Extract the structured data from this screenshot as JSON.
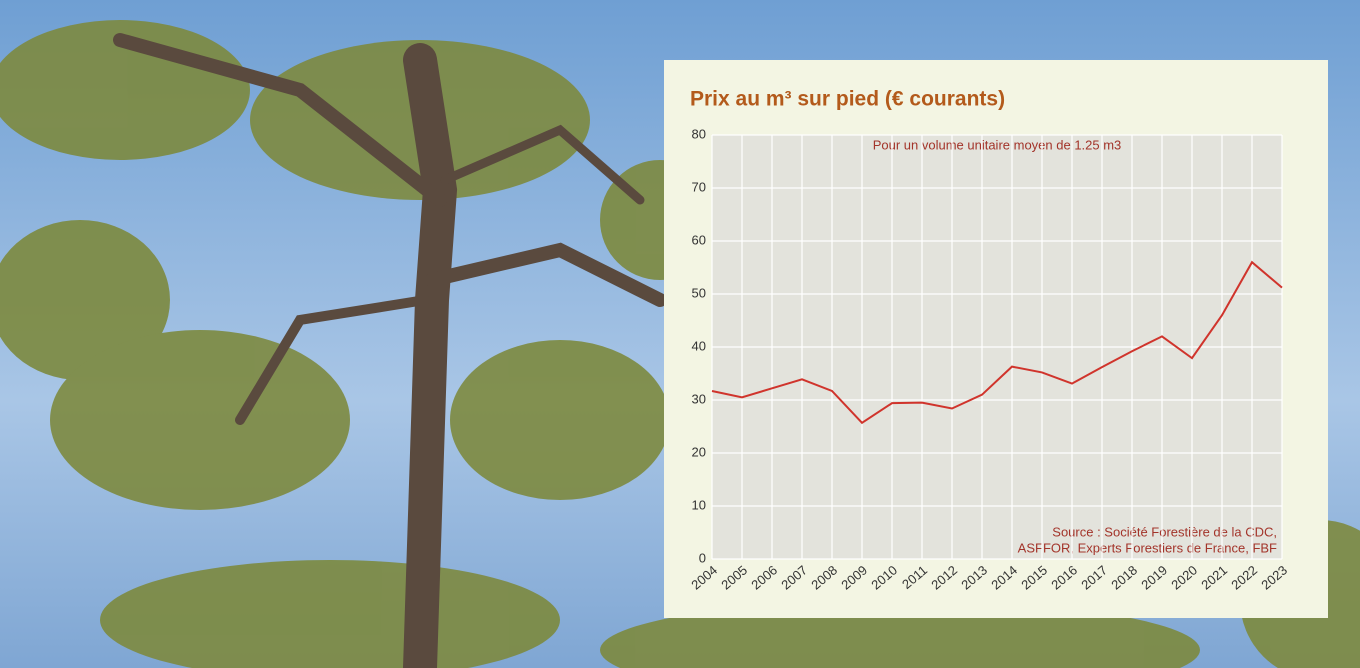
{
  "chart_data": {
    "type": "line",
    "title": "Prix au m³ sur pied (€ courants)",
    "subtitle": "Pour un volume unitaire moyen de 1.25 m3",
    "source": [
      "Source : Société Forestière de la CDC,",
      "ASFFOR, Experts Forestiers de France, FBF"
    ],
    "categories": [
      "2004",
      "2005",
      "2006",
      "2007",
      "2008",
      "2009",
      "2010",
      "2011",
      "2012",
      "2013",
      "2014",
      "2015",
      "2016",
      "2017",
      "2018",
      "2019",
      "2020",
      "2021",
      "2022",
      "2023"
    ],
    "values": [
      31.7,
      30.5,
      32.2,
      33.9,
      31.7,
      25.7,
      29.4,
      29.5,
      28.4,
      31,
      36.3,
      35.2,
      33.1,
      36.2,
      39.2,
      42,
      37.9,
      46,
      56,
      51.2
    ],
    "color": "#d0342c",
    "ylim": [
      0,
      80
    ],
    "yticks": [
      0,
      10,
      20,
      30,
      40,
      50,
      60,
      70,
      80
    ],
    "grid": true
  }
}
